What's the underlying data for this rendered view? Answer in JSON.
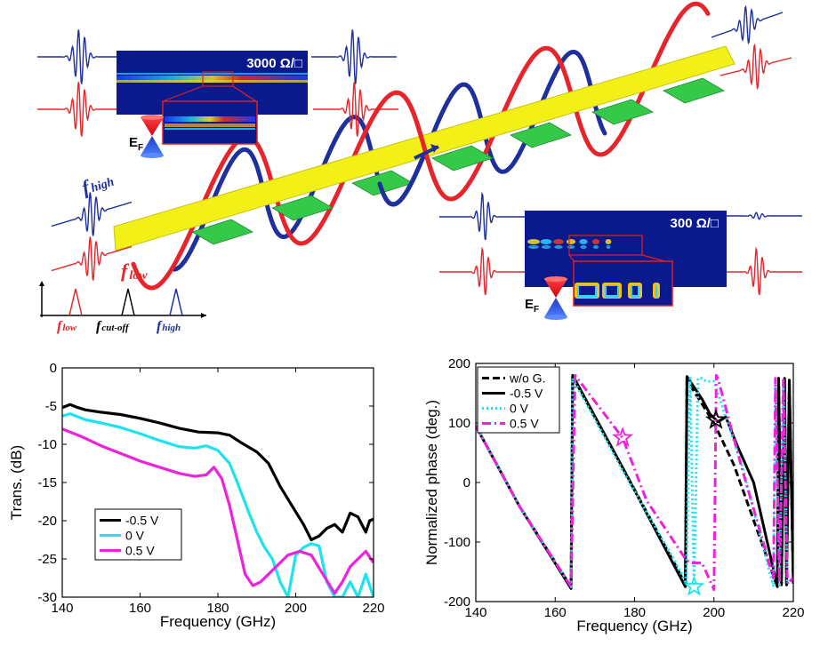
{
  "schematic": {
    "top_panel_label": "3000 Ω/□",
    "bottom_panel_label": "300 Ω/□",
    "fermi_label_main": "E",
    "fermi_label_sub": "F",
    "f_high_main": "f",
    "f_high_sub": "high",
    "f_low_main": "f",
    "f_low_sub": "low",
    "spectrum_low_main": "f",
    "spectrum_low_sub": "low",
    "spectrum_cutoff_main": "f",
    "spectrum_cutoff_sub": "cut-off",
    "spectrum_high_main": "f",
    "spectrum_high_sub": "high",
    "colors": {
      "high": "#1e2f9e",
      "low": "#e8242b",
      "strip": "#f3f018",
      "patch": "#35c94a",
      "panel": "#0a1a8c"
    }
  },
  "chart_data": [
    {
      "type": "line",
      "xlabel": "Frequency  (GHz)",
      "ylabel": "Trans.  (dB)",
      "xlim": [
        140,
        220
      ],
      "ylim": [
        -30,
        0
      ],
      "xticks": [
        140,
        160,
        180,
        200,
        220
      ],
      "yticks": [
        0,
        -5,
        -10,
        -15,
        -20,
        -25,
        -30
      ],
      "legend_position": "bottom-left",
      "series": [
        {
          "name": "-0.5 V",
          "color": "#000000",
          "x": [
            140,
            142,
            144,
            146,
            150,
            155,
            160,
            165,
            170,
            175,
            180,
            183,
            186,
            190,
            193,
            196,
            199,
            202,
            204,
            206,
            208,
            210,
            212,
            214,
            216,
            218,
            219,
            220
          ],
          "y": [
            -5.2,
            -4.8,
            -5.2,
            -5.5,
            -5.8,
            -6.1,
            -6.6,
            -7.2,
            -7.9,
            -8.4,
            -8.5,
            -8.8,
            -9.8,
            -11,
            -12.5,
            -15.5,
            -18,
            -20.5,
            -22.5,
            -22,
            -21,
            -20.5,
            -21.5,
            -19,
            -19.5,
            -21.5,
            -20,
            -19.8
          ]
        },
        {
          "name": "0 V",
          "color": "#1de3f0",
          "x": [
            140,
            142,
            144,
            146,
            150,
            155,
            160,
            165,
            170,
            174,
            177,
            180,
            183,
            185,
            188,
            190,
            192,
            194,
            196,
            198,
            200,
            202,
            204,
            206,
            208,
            210,
            212,
            214,
            216,
            218,
            220
          ],
          "y": [
            -6.3,
            -6,
            -6.4,
            -6.8,
            -7.2,
            -7.8,
            -8.6,
            -9.5,
            -10.3,
            -10.5,
            -10.2,
            -10.8,
            -12.5,
            -15,
            -19,
            -21.5,
            -23.5,
            -25,
            -28,
            -30,
            -24.5,
            -23.5,
            -23,
            -23.3,
            -28,
            -30,
            -30,
            -28,
            -30,
            -27,
            -30
          ]
        },
        {
          "name": "0.5 V",
          "color": "#ee22dd",
          "x": [
            140,
            142,
            145,
            150,
            155,
            160,
            165,
            170,
            174,
            177,
            179,
            181,
            183,
            185,
            187,
            189,
            191,
            193,
            195,
            198,
            201,
            204,
            207,
            210,
            212,
            214,
            216,
            218,
            220
          ],
          "y": [
            -8,
            -8.4,
            -9,
            -10.2,
            -11.2,
            -12.2,
            -13,
            -13.8,
            -14.2,
            -14,
            -13,
            -14.5,
            -18,
            -22.5,
            -27,
            -28.5,
            -28,
            -27,
            -26,
            -24.5,
            -24,
            -24.5,
            -27,
            -29.5,
            -28,
            -26,
            -25,
            -24,
            -25.5
          ]
        }
      ]
    },
    {
      "type": "line",
      "xlabel": "Frequency  (GHz)",
      "ylabel": "Normalized phase  (deg.)",
      "xlim": [
        140,
        220
      ],
      "ylim": [
        -200,
        200
      ],
      "xticks": [
        140,
        160,
        180,
        200,
        220
      ],
      "yticks": [
        200,
        100,
        0,
        -100,
        -200
      ],
      "legend_position": "top-left",
      "series": [
        {
          "name": "w/o G.",
          "color": "#000000",
          "dash": "8,4",
          "x": [
            140,
            151,
            164,
            164.4,
            177,
            192.8,
            193.2,
            200,
            205,
            216,
            216.3,
            217,
            217.8,
            218.3,
            219,
            220
          ],
          "y": [
            95,
            -40,
            -175,
            178,
            25,
            -170,
            172,
            100,
            30,
            -175,
            175,
            -170,
            172,
            -170,
            170,
            -170
          ]
        },
        {
          "name": "-0.5 V",
          "color": "#000000",
          "dash": "",
          "x": [
            140,
            151,
            164,
            164.4,
            177,
            192.8,
            193.2,
            197,
            199,
            201,
            203,
            206,
            210,
            216,
            216.3,
            217,
            217.8,
            218.3,
            219,
            220
          ],
          "y": [
            95,
            -40,
            -178,
            180,
            25,
            -175,
            178,
            140,
            115,
            102,
            110,
            60,
            0,
            -175,
            175,
            -172,
            175,
            -172,
            172,
            -168
          ]
        },
        {
          "name": "0 V",
          "color": "#1de3f0",
          "dash": "2,3",
          "x": [
            140,
            151,
            164,
            164.4,
            177,
            190,
            193,
            194,
            195,
            196,
            197,
            198,
            200,
            207,
            215,
            215.5,
            216.5,
            217.5,
            218.5,
            220
          ],
          "y": [
            95,
            -40,
            -175,
            175,
            20,
            -130,
            -170,
            175,
            -170,
            175,
            175,
            170,
            170,
            30,
            -175,
            172,
            -172,
            172,
            -170,
            -160
          ]
        },
        {
          "name": "0.5 V",
          "color": "#ee22dd",
          "dash": "10,4,2,4",
          "x": [
            140,
            151,
            164,
            165,
            177,
            183,
            193,
            194,
            197,
            200,
            200.6,
            201,
            207,
            215,
            215.5,
            216.5,
            217.5,
            218.5,
            220
          ],
          "y": [
            95,
            -40,
            -175,
            180,
            75,
            -30,
            -130,
            -135,
            -135,
            -180,
            180,
            175,
            25,
            -160,
            175,
            -170,
            172,
            -170,
            -160
          ]
        }
      ],
      "annotations": [
        {
          "marker": "star",
          "color": "#ee22dd",
          "x": 177,
          "y": 75
        },
        {
          "marker": "star",
          "color": "#1de3f0",
          "x": 195,
          "y": -175
        },
        {
          "marker": "star",
          "color": "#000000",
          "x": 200.5,
          "y": 105
        }
      ]
    }
  ]
}
